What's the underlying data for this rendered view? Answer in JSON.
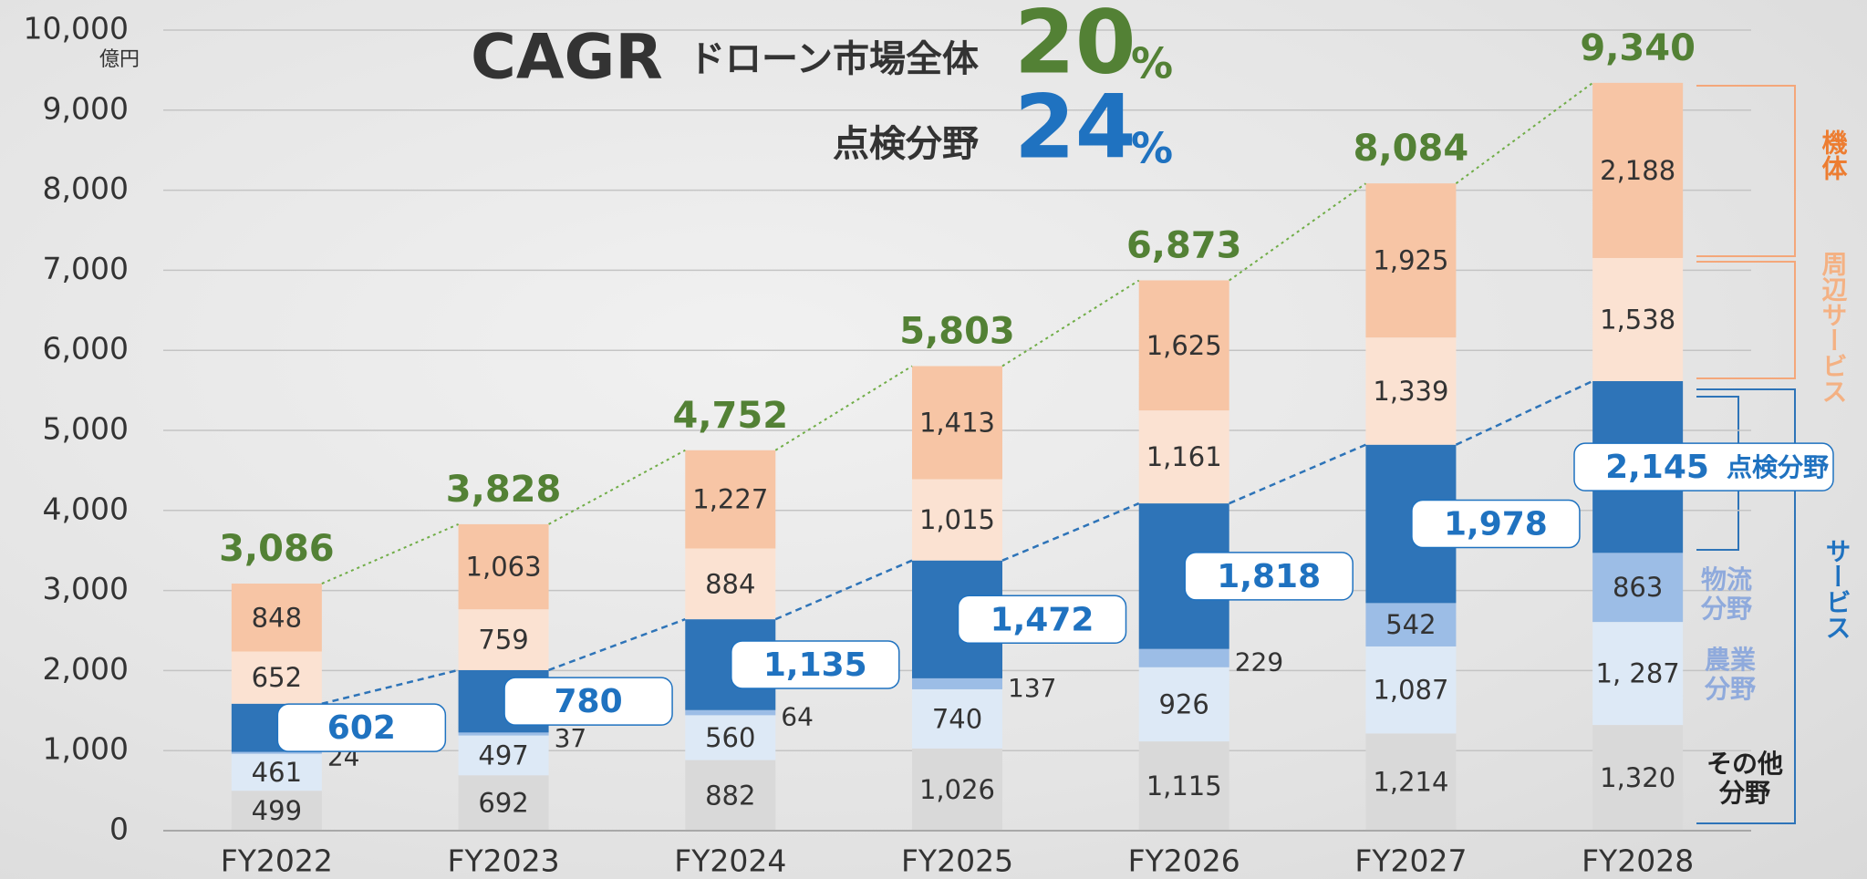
{
  "chart_data": {
    "type": "stacked_bar",
    "header": {
      "label": "CAGR",
      "rates": [
        {
          "label": "ドローン市場全体",
          "value": 20,
          "unit": "%",
          "color": "#538135"
        },
        {
          "label": "点検分野",
          "value": 24,
          "unit": "%",
          "color": "#1f72c0"
        }
      ]
    },
    "y_unit": "億円",
    "categories": [
      "FY2022",
      "FY2023",
      "FY2024",
      "FY2025",
      "FY2026",
      "FY2027",
      "FY2028"
    ],
    "series": [
      {
        "name": "その他分野",
        "color": "#d9d9d9",
        "label_color": "#222222",
        "values": [
          499,
          692,
          882,
          1026,
          1115,
          1214,
          1320
        ],
        "value_labels": [
          "499",
          "692",
          "882",
          "1,026",
          "1,115",
          "1,214",
          "1,320"
        ]
      },
      {
        "name": "農業分野",
        "color": "#dde9f6",
        "label_color": "#8faadc",
        "values": [
          461,
          497,
          560,
          740,
          926,
          1087,
          1287
        ],
        "value_labels": [
          "461",
          "497",
          "560",
          "740",
          "926",
          "1,087",
          "1, 287"
        ]
      },
      {
        "name": "物流分野",
        "color": "#9cbde6",
        "label_color": "#8faadc",
        "values": [
          24,
          37,
          64,
          137,
          229,
          542,
          863
        ],
        "value_labels": [
          "24",
          "37",
          "64",
          "137",
          "229",
          "542",
          "863"
        ]
      },
      {
        "name": "点検分野",
        "color": "#2e74b8",
        "label_color": "#1f72c0",
        "values": [
          602,
          780,
          1135,
          1472,
          1818,
          1978,
          2145
        ],
        "value_labels": [
          "602",
          "780",
          "1,135",
          "1,472",
          "1,818",
          "1,978",
          "2,145"
        ]
      },
      {
        "name": "周辺サービス",
        "color": "#fbe2d2",
        "label_color": "#f4b183",
        "values": [
          652,
          759,
          884,
          1015,
          1161,
          1339,
          1538
        ],
        "value_labels": [
          "652",
          "759",
          "884",
          "1,015",
          "1,161",
          "1,339",
          "1,538"
        ]
      },
      {
        "name": "機体",
        "color": "#f7c5a5",
        "label_color": "#ed7d31",
        "values": [
          848,
          1063,
          1227,
          1413,
          1625,
          1925,
          2188
        ],
        "value_labels": [
          "848",
          "1,063",
          "1,227",
          "1,413",
          "1,625",
          "1,925",
          "2,188"
        ]
      }
    ],
    "group_label": {
      "label": "サービス",
      "color": "#1f72c0"
    },
    "totals": {
      "color": "#538135",
      "values": [
        3086,
        3828,
        4752,
        5803,
        6873,
        8084,
        9340
      ],
      "value_labels": [
        "3,086",
        "3,828",
        "4,752",
        "5,803",
        "6,873",
        "8,084",
        "9,340"
      ]
    },
    "ylim": [
      0,
      10000
    ],
    "yticks": [
      0,
      {
        "value": 1000,
        "label": "1,000"
      },
      {
        "value": 2000,
        "label": "2,000"
      },
      {
        "value": 3000,
        "label": "3,000"
      },
      {
        "value": 4000,
        "label": "4,000"
      },
      {
        "value": 5000,
        "label": "5,000"
      },
      {
        "value": 6000,
        "label": "6,000"
      },
      {
        "value": 7000,
        "label": "7,000"
      },
      {
        "value": 8000,
        "label": "8,000"
      },
      {
        "value": 9000,
        "label": "9,000"
      },
      {
        "value": 10000,
        "label": "10,000"
      }
    ],
    "grid": true
  }
}
